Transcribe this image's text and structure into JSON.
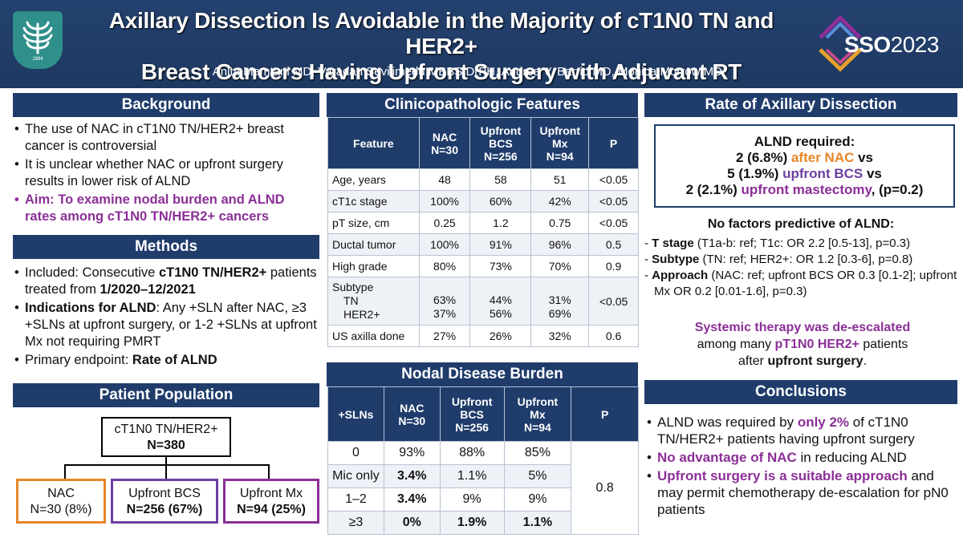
{
  "header": {
    "title_line1": "Axillary Dissection Is Avoidable in the Majority of cT1N0 TN and HER2+",
    "title_line2": "Breast Cancers Having Upfront Surgery with Adjuvant RT",
    "authors": "Anita Mamtani MD, Varadan Sevilimedu MBBS DrPH, Andrea V. Barrio MD, Monica Morrow MD",
    "left_logo_year": "1884",
    "sso_text": "SSO",
    "sso_year": "2023"
  },
  "background": {
    "heading": "Background",
    "b1": "The use of NAC in cT1N0 TN/HER2+ breast cancer is controversial",
    "b2": "It is unclear whether NAC or upfront surgery results in lower risk of ALND",
    "b3": "Aim: To examine nodal burden and ALND rates among cT1N0 TN/HER2+ cancers"
  },
  "methods": {
    "heading": "Methods",
    "b1_pre": "Included: Consecutive ",
    "b1_bold1": "cT1N0 TN/HER2+",
    "b1_mid": " patients treated from ",
    "b1_bold2": "1/2020–12/2021",
    "b2_bold": "Indications for ALND",
    "b2_rest": ": Any +SLN after NAC, ≥3 +SLNs at upfront surgery, or 1-2 +SLNs at upfront Mx not requiring PMRT",
    "b3_pre": "Primary endpoint: ",
    "b3_bold": "Rate of ALND"
  },
  "population": {
    "heading": "Patient Population",
    "top_line1": "cT1N0 TN/HER2+",
    "top_line2": "N=380",
    "nac_label": "NAC",
    "nac_n": "N=30 (8%)",
    "bcs_label": "Upfront BCS",
    "bcs_n": "N=256 (67%)",
    "mx_label": "Upfront Mx",
    "mx_n": "N=94 (25%)",
    "colors": {
      "nac": "#e8862a",
      "bcs": "#6b3fa0",
      "mx": "#8b2f97"
    }
  },
  "clinico": {
    "heading": "Clinicopathologic Features",
    "headers": [
      "Feature",
      "NAC\nN=30",
      "Upfront\nBCS\nN=256",
      "Upfront\nMx\nN=94",
      "P"
    ],
    "rows": [
      [
        "Age, years",
        "48",
        "58",
        "51",
        "<0.05"
      ],
      [
        "cT1c stage",
        "100%",
        "60%",
        "42%",
        "<0.05"
      ],
      [
        "pT size, cm",
        "0.25",
        "1.2",
        "0.75",
        "<0.05"
      ],
      [
        "Ductal tumor",
        "100%",
        "91%",
        "96%",
        "0.5"
      ],
      [
        "High grade",
        "80%",
        "73%",
        "70%",
        "0.9"
      ]
    ],
    "subtype": {
      "label": "Subtype",
      "tn": "TN",
      "her2": "HER2+",
      "nac": [
        "63%",
        "37%"
      ],
      "bcs": [
        "44%",
        "56%"
      ],
      "mx": [
        "31%",
        "69%"
      ],
      "p": "<0.05"
    },
    "us": [
      "US axilla done",
      "27%",
      "26%",
      "32%",
      "0.6"
    ]
  },
  "nodal": {
    "heading": "Nodal Disease Burden",
    "headers": [
      "+SLNs",
      "NAC\nN=30",
      "Upfront\nBCS\nN=256",
      "Upfront\nMx\nN=94",
      "P"
    ],
    "rows": [
      [
        "0",
        "93%",
        "88%",
        "85%"
      ],
      [
        "Mic only",
        "3.4%",
        "1.1%",
        "5%"
      ],
      [
        "1–2",
        "3.4%",
        "9%",
        "9%"
      ],
      [
        "≥3",
        "0%",
        "1.9%",
        "1.1%"
      ]
    ],
    "p": "0.8"
  },
  "rate": {
    "heading": "Rate of Axillary Dissection",
    "l1": "ALND required:",
    "l2a": "2 (6.8%) ",
    "l2b": "after NAC",
    "l2c": " vs",
    "l3a": "5 (1.9%) ",
    "l3b": "upfront BCS",
    "l3c": " vs",
    "l4a": "2 (2.1%) ",
    "l4b": "upfront mastectomy",
    "l4c": ", (p=0.2)",
    "nf_head": "No factors predictive of ALND:",
    "f1_bold": "T stage",
    "f1_rest": " (T1a-b: ref; T1c: OR 2.2 [0.5-13], p=0.3)",
    "f2_bold": "Subtype",
    "f2_rest": " (TN: ref; HER2+: OR 1.2 [0.3-6], p=0.8)",
    "f3_bold": "Approach",
    "f3_rest": " (NAC: ref; upfront BCS OR 0.3 [0.1-2]; upfront Mx OR 0.2 [0.01-1.6], p=0.3)",
    "sys1": "Systemic therapy was de-escalated",
    "sys2a": "among many ",
    "sys2b": "pT1N0 HER2+",
    "sys2c": " patients",
    "sys3a": "after ",
    "sys3b": "upfront surgery",
    "sys3c": "."
  },
  "conclusions": {
    "heading": "Conclusions",
    "c1a": "ALND was required by ",
    "c1b": "only 2%",
    "c1c": " of cT1N0 TN/HER2+ patients having upfront surgery",
    "c2a": "No advantage of NAC",
    "c2b": " in reducing ALND",
    "c3a": "Upfront surgery is a suitable approach",
    "c3b": " and may permit chemotherapy de-escalation for pN0 patients"
  }
}
